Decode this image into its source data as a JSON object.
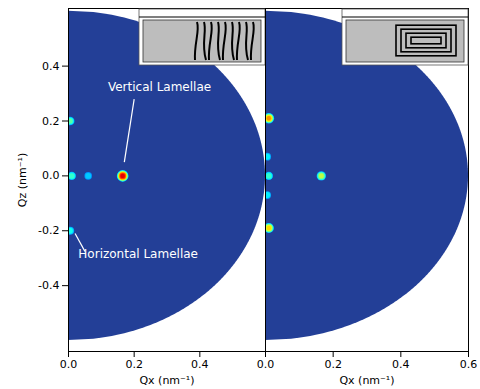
{
  "chart_data": [
    {
      "type": "heatmap",
      "x_label": "Qx (nm⁻¹)",
      "y_label": "Qz (nm⁻¹)",
      "xlim": [
        0,
        0.6
      ],
      "ylim": [
        -0.64,
        0.61
      ],
      "xticks": [
        {
          "value": 0,
          "label": "0.0"
        },
        0.2,
        0.4
      ],
      "yticks": [
        -0.4,
        -0.2,
        {
          "value": 0,
          "label": "0.0"
        },
        0.2,
        0.4
      ],
      "color": "#233f97",
      "coverage_radius": 0.6,
      "spots": [
        {
          "qx": 0.165,
          "qz": 0.0,
          "intensity": 1.0
        },
        {
          "qx": 0.01,
          "qz": 0.0,
          "intensity": 0.3
        },
        {
          "qx": 0.06,
          "qz": 0.0,
          "intensity": 0.15
        },
        {
          "qx": 0.005,
          "qz": 0.2,
          "intensity": 0.35
        },
        {
          "qx": 0.005,
          "qz": -0.2,
          "intensity": 0.25
        }
      ],
      "annotations": [
        {
          "text": "Vertical Lamellae",
          "x": 0.12,
          "y": 0.31,
          "line_x": [
            0.2,
            0.17
          ],
          "line_y": [
            0.28,
            0.05
          ]
        },
        {
          "text": "Horizontal Lamellae",
          "x": 0.03,
          "y": -0.3,
          "line_x": [
            0.05,
            0.02
          ],
          "line_y": [
            -0.275,
            -0.21
          ]
        }
      ]
    },
    {
      "type": "heatmap",
      "x_label": "Qx (nm⁻¹)",
      "xlim": [
        0,
        0.6
      ],
      "ylim": [
        -0.64,
        0.61
      ],
      "xticks": [
        {
          "value": 0,
          "label": "0.0"
        },
        0.2,
        0.4,
        0.6
      ],
      "tick_labels": "x",
      "color": "#233f97",
      "coverage_radius": 0.6,
      "spots": [
        {
          "qx": 0.165,
          "qz": 0.0,
          "intensity": 0.5
        },
        {
          "qx": 0.01,
          "qz": 0.0,
          "intensity": 0.3
        },
        {
          "qx": 0.01,
          "qz": 0.21,
          "intensity": 0.75
        },
        {
          "qx": 0.01,
          "qz": -0.19,
          "intensity": 0.65
        },
        {
          "qx": 0.005,
          "qz": 0.07,
          "intensity": 0.2
        },
        {
          "qx": 0.005,
          "qz": -0.07,
          "intensity": 0.2
        }
      ]
    }
  ]
}
